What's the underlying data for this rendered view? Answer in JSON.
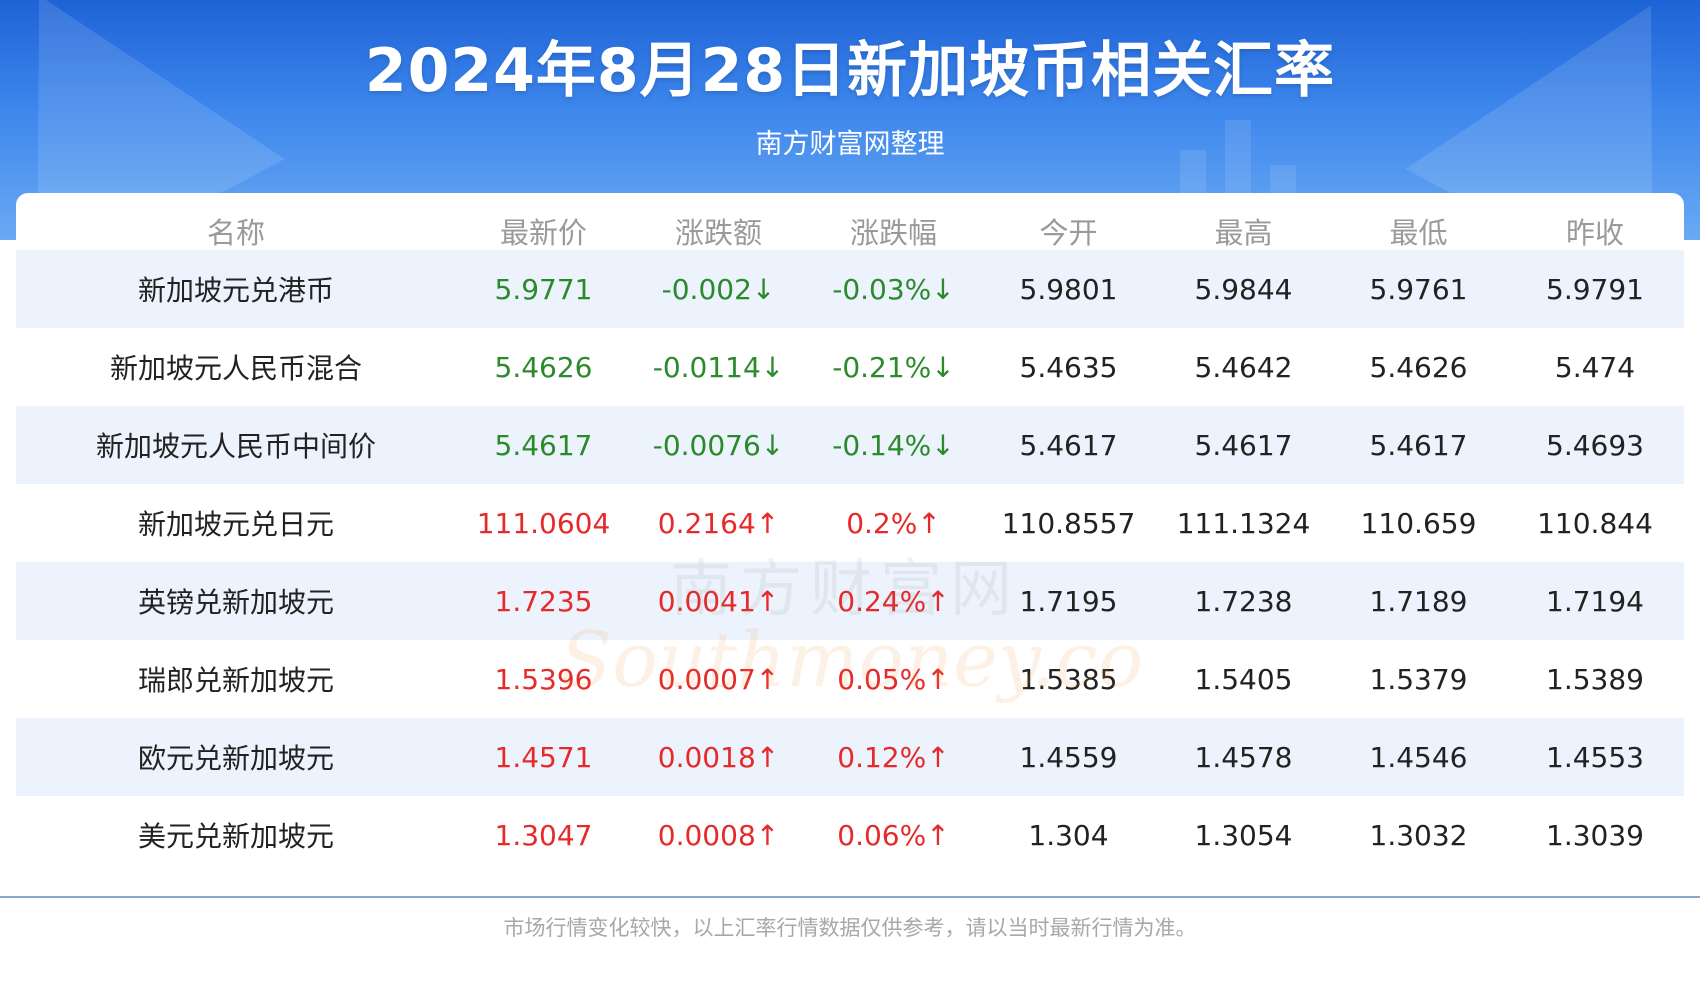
{
  "header": {
    "title": "2024年8月28日新加坡币相关汇率",
    "subtitle": "南方财富网整理"
  },
  "table": {
    "columns": [
      "名称",
      "最新价",
      "涨跌额",
      "涨跌幅",
      "今开",
      "最高",
      "最低",
      "昨收"
    ],
    "rows": [
      {
        "name": "新加坡元兑港币",
        "latest": "5.9771",
        "change": "-0.002↓",
        "change_pct": "-0.03%↓",
        "open": "5.9801",
        "high": "5.9844",
        "low": "5.9761",
        "prev_close": "5.9791",
        "trend": "down"
      },
      {
        "name": "新加坡元人民币混合",
        "latest": "5.4626",
        "change": "-0.0114↓",
        "change_pct": "-0.21%↓",
        "open": "5.4635",
        "high": "5.4642",
        "low": "5.4626",
        "prev_close": "5.474",
        "trend": "down"
      },
      {
        "name": "新加坡元人民币中间价",
        "latest": "5.4617",
        "change": "-0.0076↓",
        "change_pct": "-0.14%↓",
        "open": "5.4617",
        "high": "5.4617",
        "low": "5.4617",
        "prev_close": "5.4693",
        "trend": "down"
      },
      {
        "name": "新加坡元兑日元",
        "latest": "111.0604",
        "change": "0.2164↑",
        "change_pct": "0.2%↑",
        "open": "110.8557",
        "high": "111.1324",
        "low": "110.659",
        "prev_close": "110.844",
        "trend": "up"
      },
      {
        "name": "英镑兑新加坡元",
        "latest": "1.7235",
        "change": "0.0041↑",
        "change_pct": "0.24%↑",
        "open": "1.7195",
        "high": "1.7238",
        "low": "1.7189",
        "prev_close": "1.7194",
        "trend": "up"
      },
      {
        "name": "瑞郎兑新加坡元",
        "latest": "1.5396",
        "change": "0.0007↑",
        "change_pct": "0.05%↑",
        "open": "1.5385",
        "high": "1.5405",
        "low": "1.5379",
        "prev_close": "1.5389",
        "trend": "up"
      },
      {
        "name": "欧元兑新加坡元",
        "latest": "1.4571",
        "change": "0.0018↑",
        "change_pct": "0.12%↑",
        "open": "1.4559",
        "high": "1.4578",
        "low": "1.4546",
        "prev_close": "1.4553",
        "trend": "up"
      },
      {
        "name": "美元兑新加坡元",
        "latest": "1.3047",
        "change": "0.0008↑",
        "change_pct": "0.06%↑",
        "open": "1.304",
        "high": "1.3054",
        "low": "1.3032",
        "prev_close": "1.3039",
        "trend": "up"
      }
    ]
  },
  "watermark": {
    "cn": "南方财富网",
    "en": "Southmoney.com"
  },
  "footer": {
    "note": "市场行情变化较快，以上汇率行情数据仅供参考，请以当时最新行情为准。"
  },
  "colors": {
    "up": "#e62a2a",
    "down": "#2b8a2b",
    "header_blue": "#1e63d6",
    "row_alt": "#edf3fc"
  }
}
